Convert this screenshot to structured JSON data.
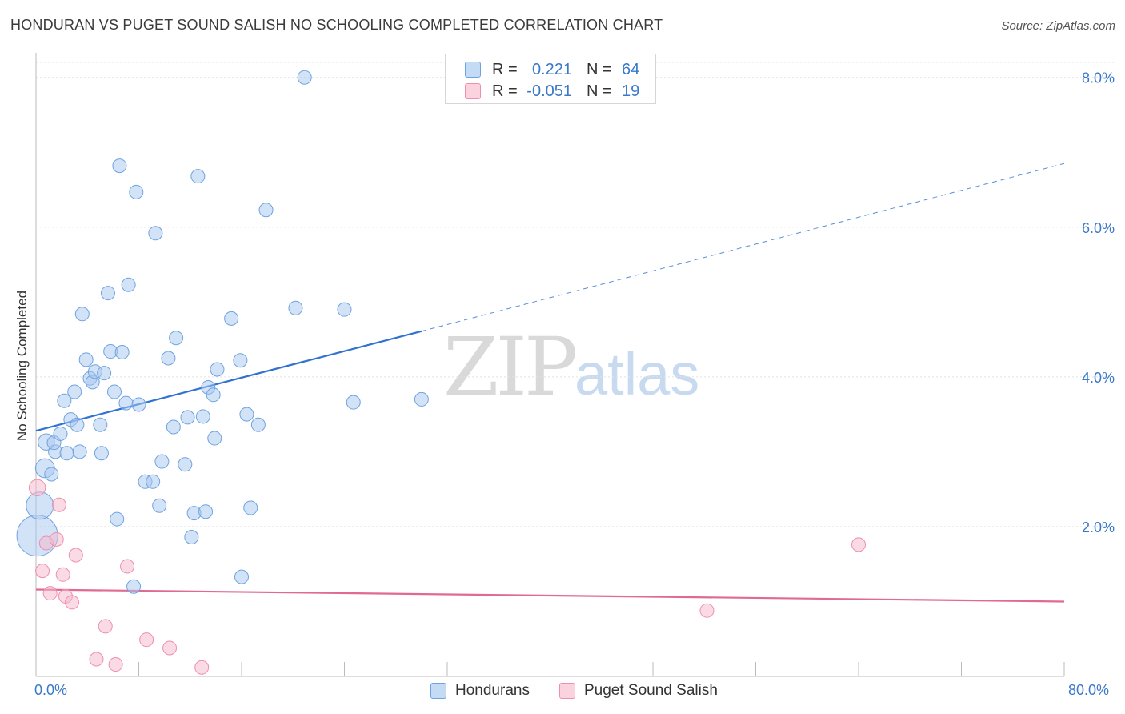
{
  "title": "HONDURAN VS PUGET SOUND SALISH NO SCHOOLING COMPLETED CORRELATION CHART",
  "source": "Source: ZipAtlas.com",
  "watermark": {
    "zip": "ZIP",
    "atlas": "atlas"
  },
  "legend": {
    "rows": [
      {
        "r_label": "R =",
        "r_value": "0.221",
        "n_label": "N =",
        "n_value": "64",
        "color": "#a8c8f0"
      },
      {
        "r_label": "R =",
        "r_value": "-0.051",
        "n_label": "N =",
        "n_value": "19",
        "color": "#f6b8cb"
      }
    ]
  },
  "bottom_legend": [
    {
      "label": "Hondurans",
      "color": "#a8c8f0"
    },
    {
      "label": "Puget Sound Salish",
      "color": "#f6b8cb"
    }
  ],
  "chart_data": {
    "type": "scatter",
    "title": "HONDURAN VS PUGET SOUND SALISH NO SCHOOLING COMPLETED CORRELATION CHART",
    "xlabel": "",
    "ylabel": "No Schooling Completed",
    "xlim": [
      0,
      80
    ],
    "ylim": [
      0,
      8.2
    ],
    "x_tick_labels": [
      "0.0%",
      "80.0%"
    ],
    "y_ticks": [
      2,
      4,
      6,
      8
    ],
    "y_tick_labels": [
      "2.0%",
      "4.0%",
      "6.0%",
      "8.0%"
    ],
    "grid": true,
    "legend_position": "top-center",
    "series": [
      {
        "name": "Hondurans",
        "color": "#6fa3e0",
        "fill": "#a8c8f0",
        "trend": {
          "x0": 0,
          "y0": 3.28,
          "x1": 30,
          "y1": 4.61,
          "dash_to_x": 80,
          "dash_to_y": 6.85,
          "color": "#2f72d1"
        },
        "points": [
          [
            0.1,
            1.88,
            3
          ],
          [
            0.3,
            2.28,
            2
          ],
          [
            0.7,
            2.78,
            1.4
          ],
          [
            0.8,
            3.13,
            1.2
          ],
          [
            1.2,
            2.7,
            1
          ],
          [
            1.5,
            3.0,
            1
          ],
          [
            1.4,
            3.12,
            1
          ],
          [
            1.9,
            3.24,
            1
          ],
          [
            2.2,
            3.68,
            1
          ],
          [
            2.4,
            2.98,
            1
          ],
          [
            2.7,
            3.43,
            1
          ],
          [
            3.0,
            3.8,
            1
          ],
          [
            3.2,
            3.36,
            1
          ],
          [
            3.4,
            3.0,
            1
          ],
          [
            3.6,
            4.84,
            1
          ],
          [
            3.9,
            4.23,
            1
          ],
          [
            4.2,
            3.98,
            1
          ],
          [
            4.4,
            3.93,
            1
          ],
          [
            4.6,
            4.07,
            1
          ],
          [
            5.0,
            3.36,
            1
          ],
          [
            5.1,
            2.98,
            1
          ],
          [
            5.3,
            4.05,
            1
          ],
          [
            5.6,
            5.12,
            1
          ],
          [
            5.8,
            4.34,
            1
          ],
          [
            6.1,
            3.8,
            1
          ],
          [
            6.3,
            2.1,
            1
          ],
          [
            6.5,
            6.82,
            1
          ],
          [
            6.7,
            4.33,
            1
          ],
          [
            7.0,
            3.65,
            1
          ],
          [
            7.2,
            5.23,
            1
          ],
          [
            7.6,
            1.2,
            1
          ],
          [
            7.8,
            6.47,
            1
          ],
          [
            8.0,
            3.63,
            1
          ],
          [
            8.5,
            2.6,
            1
          ],
          [
            9.1,
            2.6,
            1
          ],
          [
            9.3,
            5.92,
            1
          ],
          [
            9.6,
            2.28,
            1
          ],
          [
            9.8,
            2.87,
            1
          ],
          [
            10.3,
            4.25,
            1
          ],
          [
            10.7,
            3.33,
            1
          ],
          [
            10.9,
            4.52,
            1
          ],
          [
            11.6,
            2.83,
            1
          ],
          [
            11.8,
            3.46,
            1
          ],
          [
            12.1,
            1.86,
            1
          ],
          [
            12.3,
            2.18,
            1
          ],
          [
            12.6,
            6.68,
            1
          ],
          [
            13.0,
            3.47,
            1
          ],
          [
            13.2,
            2.2,
            1
          ],
          [
            13.4,
            3.86,
            1
          ],
          [
            13.8,
            3.76,
            1
          ],
          [
            13.9,
            3.18,
            1
          ],
          [
            14.1,
            4.1,
            1
          ],
          [
            15.2,
            4.78,
            1
          ],
          [
            15.9,
            4.22,
            1
          ],
          [
            16.0,
            1.33,
            1
          ],
          [
            16.4,
            3.5,
            1
          ],
          [
            16.7,
            2.25,
            1
          ],
          [
            17.3,
            3.36,
            1
          ],
          [
            17.9,
            6.23,
            1
          ],
          [
            20.2,
            4.92,
            1
          ],
          [
            20.9,
            8.0,
            1
          ],
          [
            24.0,
            4.9,
            1
          ],
          [
            24.7,
            3.66,
            1
          ],
          [
            30.0,
            3.7,
            1
          ]
        ]
      },
      {
        "name": "Puget Sound Salish",
        "color": "#ee8fad",
        "fill": "#f6b8cb",
        "trend": {
          "x0": 0,
          "y0": 1.16,
          "x1": 80,
          "y1": 1.0,
          "color": "#e06a92"
        },
        "points": [
          [
            0.1,
            2.52,
            1.2
          ],
          [
            0.5,
            1.41,
            1
          ],
          [
            0.8,
            1.78,
            1
          ],
          [
            1.1,
            1.11,
            1
          ],
          [
            1.6,
            1.83,
            1
          ],
          [
            1.8,
            2.29,
            1
          ],
          [
            2.1,
            1.36,
            1
          ],
          [
            2.3,
            1.07,
            1
          ],
          [
            2.8,
            0.99,
            1
          ],
          [
            3.1,
            1.62,
            1
          ],
          [
            4.7,
            0.23,
            1
          ],
          [
            5.4,
            0.67,
            1
          ],
          [
            6.2,
            0.16,
            1
          ],
          [
            7.1,
            1.47,
            1
          ],
          [
            8.6,
            0.49,
            1
          ],
          [
            10.4,
            0.38,
            1
          ],
          [
            12.9,
            0.12,
            1
          ],
          [
            52.2,
            0.88,
            1
          ],
          [
            64.0,
            1.76,
            1
          ]
        ]
      }
    ]
  }
}
